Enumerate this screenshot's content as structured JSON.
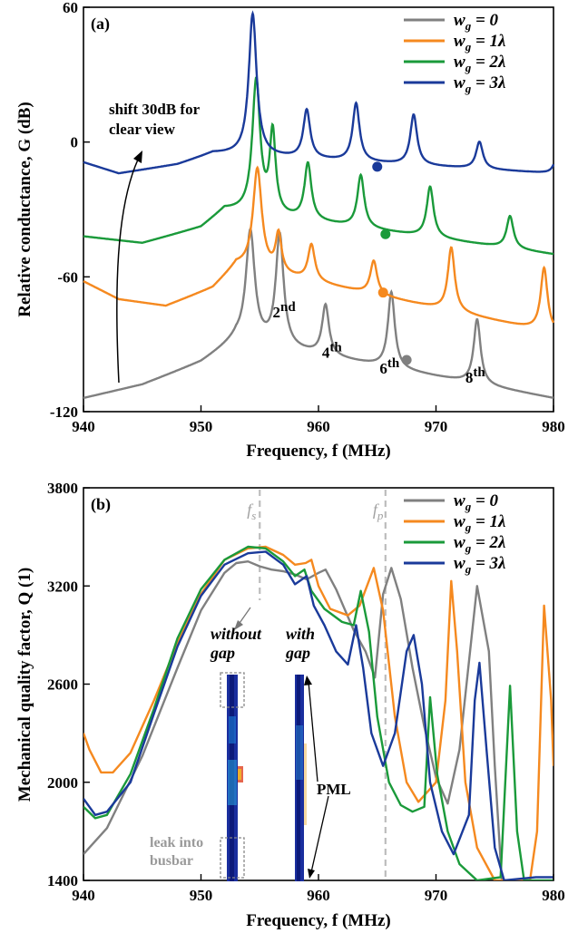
{
  "chart_data": [
    {
      "type": "line",
      "panel_label": "(a)",
      "xlabel": "Frequency, f (MHz)",
      "ylabel": "Relative conductance, G (dB)",
      "xlim": [
        940,
        980
      ],
      "ylim": [
        -120,
        60
      ],
      "xticks": [
        940,
        950,
        960,
        970,
        980
      ],
      "yticks": [
        -120,
        -60,
        0,
        60
      ],
      "legend_position": "top-right",
      "annotation_shift": "shift 30dB for clear view",
      "series": [
        {
          "name": "wg = 0",
          "color": "#808080",
          "base": [
            [
              940,
              -114
            ],
            [
              945,
              -108
            ],
            [
              950,
              -98
            ],
            [
              953,
              -88
            ],
            [
              980,
              -114
            ]
          ],
          "peaks": [
            [
              954.2,
              -40,
              0.45
            ],
            [
              956.7,
              -42,
              0.4
            ],
            [
              960.6,
              -73,
              0.35
            ],
            [
              966.2,
              -67,
              0.35
            ],
            [
              973.5,
              -79,
              0.35
            ]
          ],
          "marker": [
            967.5,
            -97
          ]
        },
        {
          "name": "wg = 1λ",
          "color": "#f5891f",
          "base": [
            [
              940,
              -62
            ],
            [
              943,
              -70
            ],
            [
              947,
              -73
            ],
            [
              951,
              -65
            ],
            [
              953,
              -55
            ],
            [
              980,
              -85
            ]
          ],
          "peaks": [
            [
              954.8,
              -12,
              0.45
            ],
            [
              956.6,
              -42,
              0.3
            ],
            [
              959.4,
              -46,
              0.35
            ],
            [
              964.7,
              -53,
              0.35
            ],
            [
              971.3,
              -47,
              0.35
            ],
            [
              979.2,
              -56,
              0.35
            ]
          ],
          "marker": [
            965.5,
            -67
          ]
        },
        {
          "name": "wg = 2λ",
          "color": "#1a9a3a",
          "base": [
            [
              940,
              -42
            ],
            [
              945,
              -45
            ],
            [
              950,
              -38
            ],
            [
              952,
              -30
            ],
            [
              980,
              -50
            ]
          ],
          "peaks": [
            [
              954.7,
              27,
              0.4
            ],
            [
              956.1,
              3,
              0.3
            ],
            [
              959.1,
              -10,
              0.35
            ],
            [
              963.6,
              -15,
              0.35
            ],
            [
              969.5,
              -20,
              0.35
            ],
            [
              976.3,
              -33,
              0.35
            ]
          ],
          "marker": [
            965.7,
            -41
          ]
        },
        {
          "name": "wg = 3λ",
          "color": "#1a3a9a",
          "base": [
            [
              940,
              -9
            ],
            [
              943,
              -14
            ],
            [
              948,
              -10
            ],
            [
              951,
              -5
            ],
            [
              980,
              -14
            ]
          ],
          "peaks": [
            [
              954.4,
              57,
              0.4
            ],
            [
              959.0,
              14,
              0.35
            ],
            [
              963.2,
              17,
              0.35
            ],
            [
              968.1,
              12,
              0.35
            ],
            [
              973.7,
              0,
              0.35
            ],
            [
              980.3,
              -6,
              0.3
            ]
          ],
          "marker": [
            965.0,
            -11
          ]
        }
      ],
      "mode_labels": [
        {
          "n": "2",
          "suffix": "nd",
          "x": 956.1,
          "y": -78
        },
        {
          "n": "4",
          "suffix": "th",
          "x": 960.3,
          "y": -96
        },
        {
          "n": "6",
          "suffix": "th",
          "x": 965.2,
          "y": -103
        },
        {
          "n": "8",
          "suffix": "th",
          "x": 972.5,
          "y": -107
        }
      ]
    },
    {
      "type": "line",
      "panel_label": "(b)",
      "xlabel": "Frequency, f (MHz)",
      "ylabel": "Mechanical quality factor, Q (1)",
      "xlim": [
        940,
        980
      ],
      "ylim": [
        1400,
        3800
      ],
      "xticks": [
        940,
        950,
        960,
        970,
        980
      ],
      "yticks": [
        1400,
        2000,
        2600,
        3200,
        3800
      ],
      "legend_position": "top-right",
      "fs": {
        "label": "f",
        "sub": "s",
        "x": 955
      },
      "fp": {
        "label": "f",
        "sub": "p",
        "x": 965.7
      },
      "annotations": {
        "without_gap": [
          "without",
          "gap"
        ],
        "with_gap": [
          "with",
          "gap"
        ],
        "pml": "PML",
        "leak": [
          "leak into",
          "busbar"
        ]
      },
      "series": [
        {
          "name": "wg = 0",
          "color": "#808080",
          "pts": [
            [
              940,
              1560
            ],
            [
              942,
              1720
            ],
            [
              945,
              2160
            ],
            [
              948,
              2700
            ],
            [
              950,
              3050
            ],
            [
              952,
              3280
            ],
            [
              953,
              3340
            ],
            [
              954,
              3350
            ],
            [
              955,
              3320
            ],
            [
              956,
              3300
            ],
            [
              957,
              3290
            ],
            [
              958,
              3270
            ],
            [
              959,
              3240
            ],
            [
              960,
              3280
            ],
            [
              960.6,
              3300
            ],
            [
              961.5,
              3180
            ],
            [
              963,
              2930
            ],
            [
              964,
              2800
            ],
            [
              964.8,
              2640
            ],
            [
              965.5,
              3150
            ],
            [
              966.2,
              3310
            ],
            [
              967,
              3120
            ],
            [
              968,
              2700
            ],
            [
              969,
              2340
            ],
            [
              970,
              2030
            ],
            [
              971,
              1870
            ],
            [
              972,
              2200
            ],
            [
              973.5,
              3200
            ],
            [
              974.5,
              2800
            ],
            [
              975,
              2100
            ],
            [
              975.6,
              1400
            ]
          ]
        },
        {
          "name": "wg = 1λ",
          "color": "#f5891f",
          "pts": [
            [
              940,
              2300
            ],
            [
              940.5,
              2200
            ],
            [
              941.5,
              2060
            ],
            [
              942.5,
              2060
            ],
            [
              944,
              2180
            ],
            [
              946,
              2500
            ],
            [
              948,
              2850
            ],
            [
              950,
              3150
            ],
            [
              952,
              3360
            ],
            [
              954,
              3430
            ],
            [
              955.5,
              3440
            ],
            [
              957,
              3390
            ],
            [
              958,
              3330
            ],
            [
              958.9,
              3340
            ],
            [
              959.4,
              3360
            ],
            [
              960,
              3200
            ],
            [
              961,
              3060
            ],
            [
              962.5,
              3020
            ],
            [
              963.5,
              3080
            ],
            [
              964.7,
              3310
            ],
            [
              965.5,
              3050
            ],
            [
              966.5,
              2400
            ],
            [
              967.5,
              2000
            ],
            [
              968.5,
              1880
            ],
            [
              970,
              2000
            ],
            [
              970.8,
              2500
            ],
            [
              971.3,
              3230
            ],
            [
              971.8,
              2800
            ],
            [
              972.5,
              2000
            ],
            [
              973.5,
              1600
            ],
            [
              975,
              1400
            ],
            [
              978,
              1400
            ],
            [
              978.6,
              1700
            ],
            [
              979.2,
              3080
            ],
            [
              979.8,
              2500
            ],
            [
              980,
              2100
            ]
          ]
        },
        {
          "name": "wg = 2λ",
          "color": "#1a9a3a",
          "pts": [
            [
              940,
              1850
            ],
            [
              941,
              1780
            ],
            [
              942,
              1800
            ],
            [
              944,
              2050
            ],
            [
              946,
              2450
            ],
            [
              948,
              2880
            ],
            [
              950,
              3180
            ],
            [
              952,
              3360
            ],
            [
              954,
              3440
            ],
            [
              955.5,
              3430
            ],
            [
              957,
              3350
            ],
            [
              958,
              3260
            ],
            [
              958.8,
              3300
            ],
            [
              959.4,
              3170
            ],
            [
              960.5,
              3060
            ],
            [
              962,
              2980
            ],
            [
              963,
              2960
            ],
            [
              963.6,
              3170
            ],
            [
              964.3,
              2920
            ],
            [
              965,
              2400
            ],
            [
              966,
              2000
            ],
            [
              967,
              1860
            ],
            [
              968,
              1820
            ],
            [
              969,
              1850
            ],
            [
              969.5,
              2520
            ],
            [
              970.1,
              2050
            ],
            [
              971,
              1700
            ],
            [
              972,
              1500
            ],
            [
              973.5,
              1400
            ],
            [
              975.5,
              1420
            ],
            [
              976.3,
              2590
            ],
            [
              976.9,
              1700
            ],
            [
              977.5,
              1400
            ],
            [
              980,
              1400
            ]
          ]
        },
        {
          "name": "wg = 3λ",
          "color": "#1a3a9a",
          "pts": [
            [
              940,
              1900
            ],
            [
              941,
              1800
            ],
            [
              942,
              1820
            ],
            [
              944,
              2000
            ],
            [
              946,
              2420
            ],
            [
              948,
              2830
            ],
            [
              950,
              3140
            ],
            [
              952,
              3330
            ],
            [
              954,
              3400
            ],
            [
              955.5,
              3410
            ],
            [
              957,
              3330
            ],
            [
              958,
              3210
            ],
            [
              959,
              3260
            ],
            [
              959.6,
              3080
            ],
            [
              960.5,
              2960
            ],
            [
              961.5,
              2800
            ],
            [
              962.5,
              2720
            ],
            [
              963.2,
              2960
            ],
            [
              963.8,
              2700
            ],
            [
              964.5,
              2300
            ],
            [
              965.5,
              2100
            ],
            [
              966.5,
              2300
            ],
            [
              967.5,
              2800
            ],
            [
              968.1,
              2900
            ],
            [
              968.8,
              2600
            ],
            [
              969.5,
              2000
            ],
            [
              970.5,
              1700
            ],
            [
              971.5,
              1560
            ],
            [
              972.8,
              1800
            ],
            [
              973.3,
              2500
            ],
            [
              973.7,
              2730
            ],
            [
              974.3,
              2200
            ],
            [
              975,
              1600
            ],
            [
              975.8,
              1400
            ],
            [
              978.5,
              1420
            ],
            [
              980.1,
              1420
            ]
          ]
        }
      ]
    }
  ]
}
